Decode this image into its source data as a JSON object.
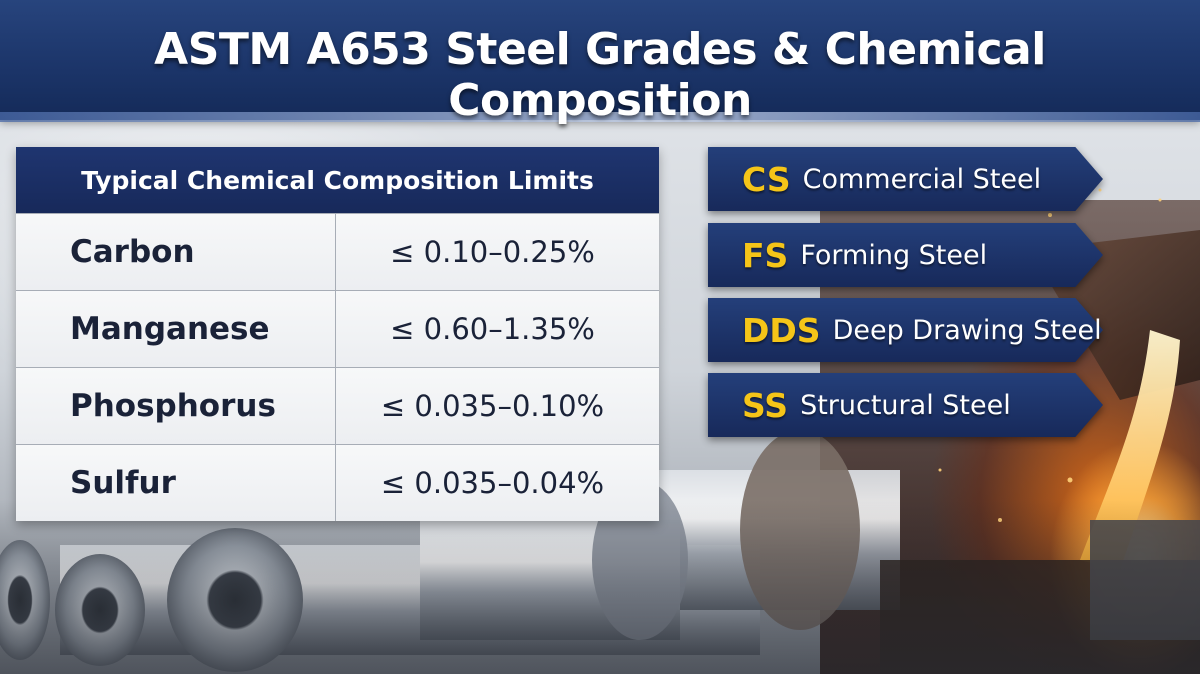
{
  "title": "ASTM A653 Steel Grades & Chemical Composition",
  "table": {
    "header": "Typical Chemical Composition Limits",
    "rows": [
      {
        "element": "Carbon",
        "limit": "≤ 0.10–0.25%"
      },
      {
        "element": "Manganese",
        "limit": "≤ 0.60–1.35%"
      },
      {
        "element": "Phosphorus",
        "limit": "≤ 0.035–0.10%"
      },
      {
        "element": "Sulfur",
        "limit": "≤ 0.035–0.04%"
      }
    ]
  },
  "grades": [
    {
      "code": "CS",
      "name": "Commercial Steel"
    },
    {
      "code": "FS",
      "name": "Forming Steel"
    },
    {
      "code": "DDS",
      "name": "Deep Drawing Steel"
    },
    {
      "code": "SS",
      "name": "Structural Steel"
    }
  ],
  "colors": {
    "banner": "#1b3468",
    "grade_code": "#f5c518",
    "text_dark": "#1a2238"
  },
  "background": {
    "left": "steel-coils-image",
    "right": "molten-steel-pouring-image"
  }
}
